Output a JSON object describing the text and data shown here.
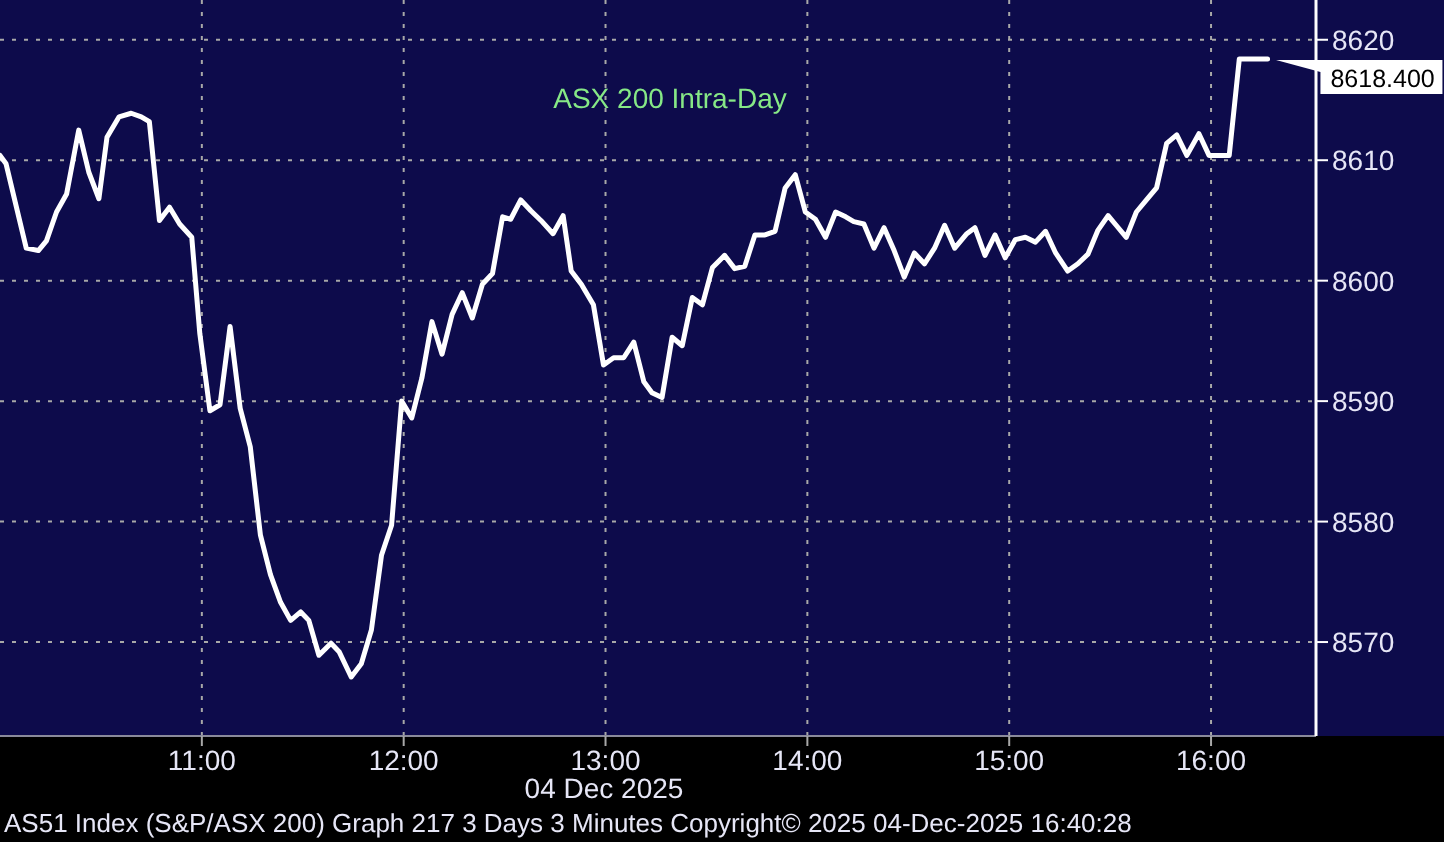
{
  "chart_data": {
    "type": "line",
    "title": "ASX 200 Intra-Day",
    "xlabel": "04 Dec 2025",
    "annotations": [
      {
        "text": "8618.400",
        "x": 16.28,
        "y": 8618.4
      },
      "AS51 Index (S&P/ASX 200) Graph 217 3 Days 3 Minutes Copyright© 2025 04-Dec-2025 16:40:28"
    ],
    "x": [
      10.0,
      10.03,
      10.13,
      10.19,
      10.23,
      10.28,
      10.33,
      10.39,
      10.44,
      10.49,
      10.53,
      10.59,
      10.65,
      10.7,
      10.74,
      10.79,
      10.84,
      10.89,
      10.95,
      10.99,
      11.04,
      11.09,
      11.14,
      11.19,
      11.24,
      11.29,
      11.34,
      11.39,
      11.44,
      11.49,
      11.53,
      11.58,
      11.64,
      11.68,
      11.74,
      11.79,
      11.84,
      11.89,
      11.94,
      11.99,
      12.04,
      12.09,
      12.14,
      12.19,
      12.24,
      12.29,
      12.34,
      12.39,
      12.44,
      12.49,
      12.53,
      12.58,
      12.63,
      12.68,
      12.74,
      12.79,
      12.83,
      12.88,
      12.94,
      12.99,
      13.04,
      13.09,
      13.14,
      13.19,
      13.23,
      13.28,
      13.33,
      13.38,
      13.43,
      13.48,
      13.53,
      13.59,
      13.64,
      13.69,
      13.74,
      13.79,
      13.84,
      13.89,
      13.94,
      13.99,
      14.04,
      14.09,
      14.14,
      14.19,
      14.23,
      14.28,
      14.33,
      14.38,
      14.43,
      14.48,
      14.53,
      14.58,
      14.63,
      14.68,
      14.73,
      14.79,
      14.83,
      14.88,
      14.93,
      14.98,
      15.03,
      15.08,
      15.13,
      15.18,
      15.23,
      15.29,
      15.34,
      15.39,
      15.44,
      15.49,
      15.53,
      15.58,
      15.63,
      15.68,
      15.73,
      15.78,
      15.83,
      15.88,
      15.94,
      15.99,
      16.04,
      16.09,
      16.14,
      16.28
    ],
    "values": [
      8610.4,
      8609.7,
      8602.7,
      8602.5,
      8603.3,
      8605.7,
      8607.2,
      8612.5,
      8609.0,
      8606.8,
      8611.9,
      8613.6,
      8613.9,
      8613.6,
      8613.2,
      8605.0,
      8606.1,
      8604.7,
      8603.6,
      8595.6,
      8589.2,
      8589.7,
      8596.2,
      8589.4,
      8586.2,
      8578.9,
      8575.6,
      8573.3,
      8571.8,
      8572.5,
      8571.8,
      8568.9,
      8569.9,
      8569.2,
      8567.1,
      8568.2,
      8571.0,
      8577.2,
      8579.7,
      8590.0,
      8588.6,
      8591.9,
      8596.6,
      8593.9,
      8597.2,
      8599.0,
      8596.9,
      8599.7,
      8600.6,
      8605.3,
      8605.1,
      8606.7,
      8605.8,
      8605.0,
      8603.9,
      8605.4,
      8600.8,
      8599.7,
      8598.0,
      8593.0,
      8593.6,
      8593.6,
      8594.9,
      8591.6,
      8590.7,
      8590.3,
      8595.3,
      8594.6,
      8598.6,
      8598.0,
      8601.1,
      8602.1,
      8601.0,
      8601.2,
      8603.8,
      8603.8,
      8604.1,
      8607.7,
      8608.8,
      8605.7,
      8605.1,
      8603.6,
      8605.7,
      8605.3,
      8604.9,
      8604.7,
      8602.7,
      8604.4,
      8602.5,
      8600.3,
      8602.3,
      8601.4,
      8602.7,
      8604.6,
      8602.7,
      8603.9,
      8604.4,
      8602.1,
      8603.8,
      8601.9,
      8603.4,
      8603.6,
      8603.2,
      8604.1,
      8602.3,
      8600.8,
      8601.4,
      8602.2,
      8604.2,
      8605.4,
      8604.6,
      8603.6,
      8605.7,
      8606.7,
      8607.7,
      8611.4,
      8612.1,
      8610.4,
      8612.2,
      8610.4,
      8610.4,
      8610.4,
      8618.4,
      8618.4
    ],
    "color": "#ffffff",
    "line_style": "solid",
    "xlim": [
      10,
      16.52
    ],
    "xticks": [
      {
        "value": 11,
        "label": "11:00"
      },
      {
        "value": 12,
        "label": "12:00"
      },
      {
        "value": 13,
        "label": "13:00"
      },
      {
        "value": 14,
        "label": "14:00"
      },
      {
        "value": 15,
        "label": "15:00"
      },
      {
        "value": 16,
        "label": "16:00"
      }
    ],
    "ylim": [
      8562.2,
      8623.3
    ],
    "yticks": [
      8570,
      8580,
      8590,
      8600,
      8610,
      8620
    ],
    "grid": true
  }
}
